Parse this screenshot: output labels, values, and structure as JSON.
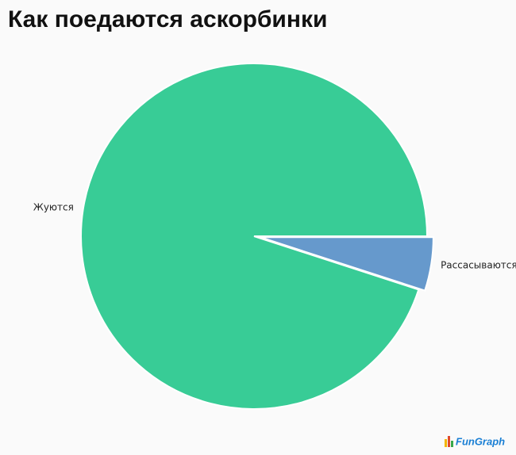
{
  "chart_data": {
    "type": "pie",
    "title": "Как поедаются аскорбинки",
    "categories": [
      "Рассасываются",
      "Жуются"
    ],
    "values": [
      5,
      95
    ],
    "colors": [
      "#6699cc",
      "#38cc96"
    ],
    "exploded": [
      true,
      false
    ],
    "watermark": "FunGraph"
  }
}
